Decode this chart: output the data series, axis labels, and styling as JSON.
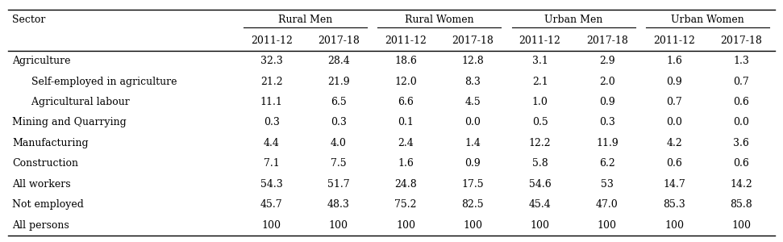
{
  "col_groups": [
    "Rural Men",
    "Rural Women",
    "Urban Men",
    "Urban Women"
  ],
  "col_years": [
    "2011-12",
    "2017-18",
    "2011-12",
    "2017-18",
    "2011-12",
    "2017-18",
    "2011-12",
    "2017-18"
  ],
  "rows": [
    {
      "label": "Agriculture",
      "indent": false,
      "values": [
        "32.3",
        "28.4",
        "18.6",
        "12.8",
        "3.1",
        "2.9",
        "1.6",
        "1.3"
      ]
    },
    {
      "label": "Self-employed in agriculture",
      "indent": true,
      "values": [
        "21.2",
        "21.9",
        "12.0",
        "8.3",
        "2.1",
        "2.0",
        "0.9",
        "0.7"
      ]
    },
    {
      "label": "Agricultural labour",
      "indent": true,
      "values": [
        "11.1",
        "6.5",
        "6.6",
        "4.5",
        "1.0",
        "0.9",
        "0.7",
        "0.6"
      ]
    },
    {
      "label": "Mining and Quarrying",
      "indent": false,
      "values": [
        "0.3",
        "0.3",
        "0.1",
        "0.0",
        "0.5",
        "0.3",
        "0.0",
        "0.0"
      ]
    },
    {
      "label": "Manufacturing",
      "indent": false,
      "values": [
        "4.4",
        "4.0",
        "2.4",
        "1.4",
        "12.2",
        "11.9",
        "4.2",
        "3.6"
      ]
    },
    {
      "label": "Construction",
      "indent": false,
      "values": [
        "7.1",
        "7.5",
        "1.6",
        "0.9",
        "5.8",
        "6.2",
        "0.6",
        "0.6"
      ]
    },
    {
      "label": "All workers",
      "indent": false,
      "values": [
        "54.3",
        "51.7",
        "24.8",
        "17.5",
        "54.6",
        "53",
        "14.7",
        "14.2"
      ]
    },
    {
      "label": "Not employed",
      "indent": false,
      "values": [
        "45.7",
        "48.3",
        "75.2",
        "82.5",
        "45.4",
        "47.0",
        "85.3",
        "85.8"
      ]
    },
    {
      "label": "All persons",
      "indent": false,
      "values": [
        "100",
        "100",
        "100",
        "100",
        "100",
        "100",
        "100",
        "100"
      ]
    }
  ],
  "sector_col_label": "Sector",
  "bg_color": "#ffffff",
  "font_size": 9.0,
  "header_font_size": 9.0,
  "indent_str": "      "
}
